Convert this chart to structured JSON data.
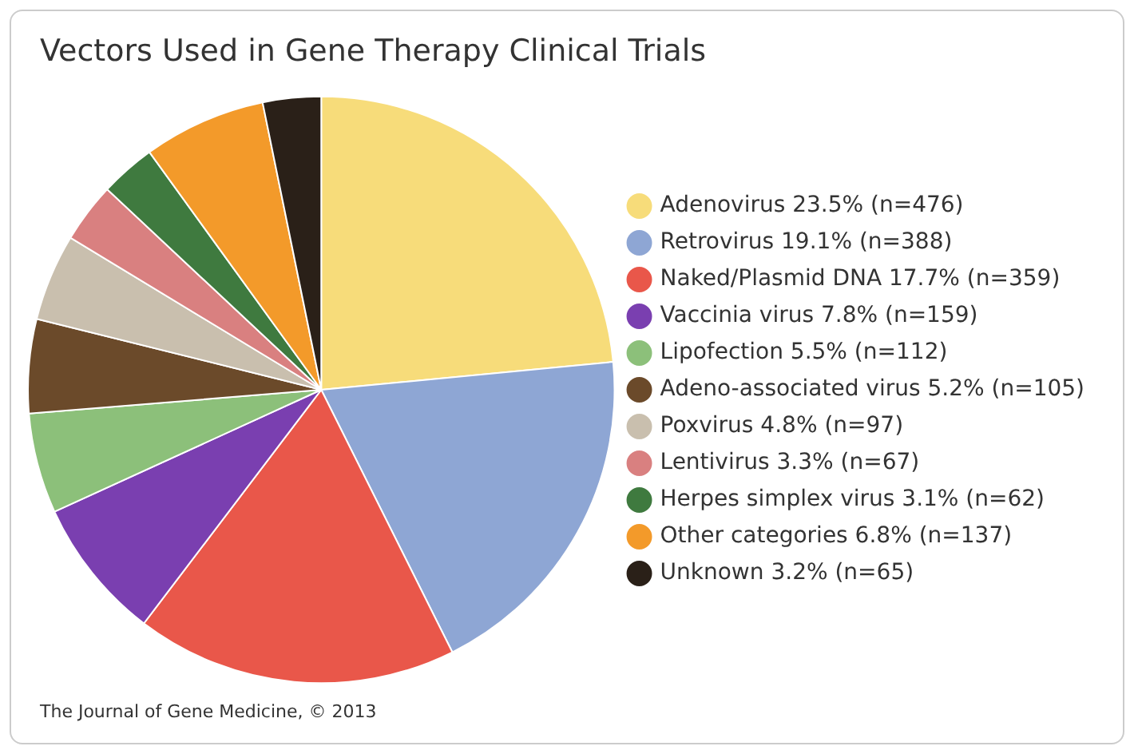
{
  "chart_data": {
    "type": "pie",
    "title": "Vectors Used in Gene Therapy Clinical Trials",
    "categories": [
      "Adenovirus 23.5% (n=476)",
      "Retrovirus 19.1% (n=388)",
      "Naked/Plasmid DNA 17.7% (n=359)",
      "Vaccinia virus 7.8% (n=159)",
      "Lipofection 5.5% (n=112)",
      "Adeno-associated virus 5.2% (n=105)",
      "Poxvirus 4.8% (n=97)",
      "Lentivirus 3.3% (n=67)",
      "Herpes simplex virus 3.1% (n=62)",
      "Other categories 6.8% (n=137)",
      "Unknown 3.2% (n=65)"
    ],
    "values": [
      476,
      388,
      359,
      159,
      112,
      105,
      97,
      67,
      62,
      137,
      65
    ],
    "colors": [
      "#f7dc7a",
      "#8ea6d4",
      "#e9574a",
      "#7a3fb0",
      "#8cc07a",
      "#6b4a2a",
      "#c9bfae",
      "#d98080",
      "#3f7a3f",
      "#f39a2a",
      "#2a2018"
    ],
    "legend": "right",
    "annotations": [
      "The Journal of Gene Medicine, © 2013"
    ]
  }
}
